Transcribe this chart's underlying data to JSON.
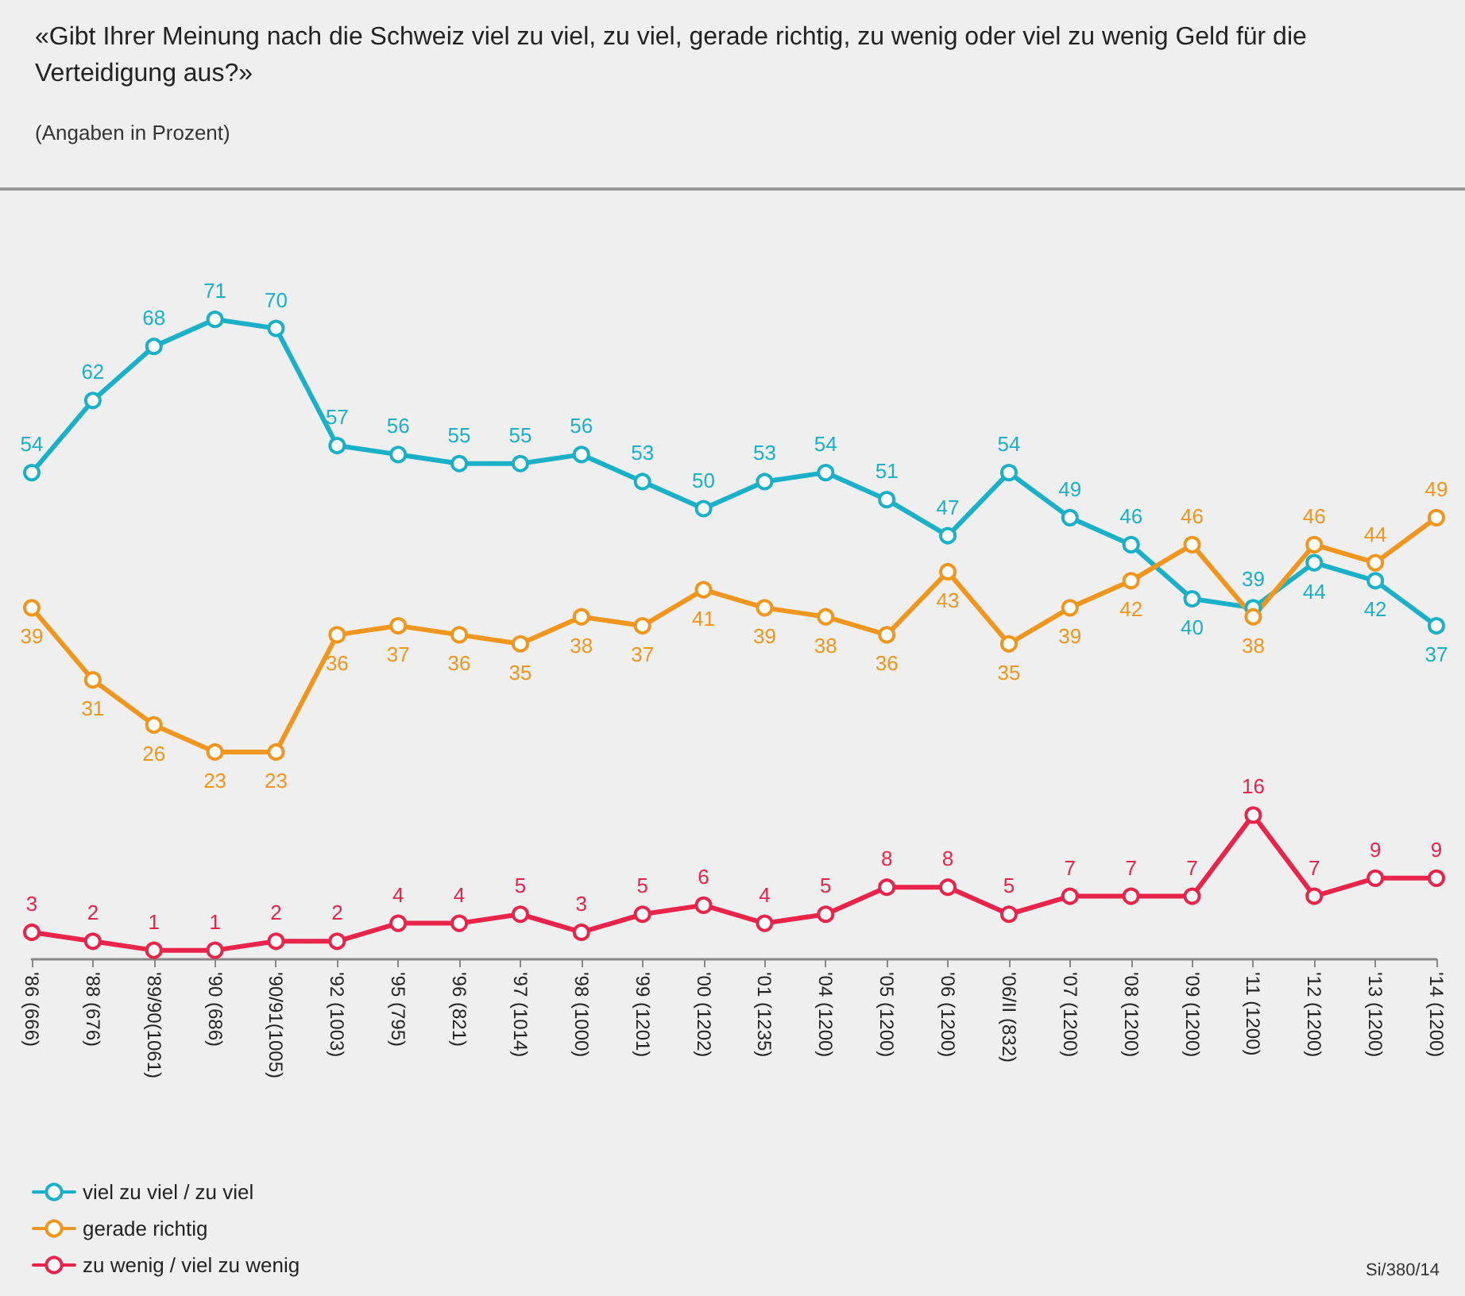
{
  "chart_data": {
    "type": "line",
    "title": "«Gibt Ihrer Meinung nach die Schweiz viel zu viel, zu viel, gerade richtig, zu wenig oder viel zu wenig Geld für die Verteidigung aus?»",
    "subtitle": "(Angaben in Prozent)",
    "annotations": [
      "Si/380/14"
    ],
    "categories": [
      "'86 (666)",
      "'88 (676)",
      "'89/90(1061)",
      "'90 (686)",
      "'90/91(1005)",
      "'92 (1003)",
      "'95 (795)",
      "'96 (821)",
      "'97 (1014)",
      "'98 (1000)",
      "'99 (1201)",
      "'00 (1202)",
      "'01 (1235)",
      "'04 (1200)",
      "'05 (1200)",
      "'06 (1200)",
      "'06/II (832)",
      "'07 (1200)",
      "'08 (1200)",
      "'09 (1200)",
      "'11 (1200)",
      "'12 (1200)",
      "'13 (1200)",
      "'14 (1200)"
    ],
    "series": [
      {
        "name": "viel zu viel / zu viel",
        "color": "#1ab0c8",
        "values": [
          54,
          62,
          68,
          71,
          70,
          57,
          56,
          55,
          55,
          56,
          53,
          50,
          53,
          54,
          51,
          47,
          54,
          49,
          46,
          40,
          39,
          44,
          42,
          37
        ]
      },
      {
        "name": "gerade richtig",
        "color": "#f0961e",
        "values": [
          39,
          31,
          26,
          23,
          23,
          36,
          37,
          36,
          35,
          38,
          37,
          41,
          39,
          38,
          36,
          43,
          35,
          39,
          42,
          46,
          38,
          46,
          44,
          49
        ]
      },
      {
        "name": "zu wenig / viel zu wenig",
        "color": "#e8244a",
        "values": [
          3,
          2,
          1,
          1,
          2,
          2,
          4,
          4,
          5,
          3,
          5,
          6,
          4,
          5,
          8,
          8,
          5,
          7,
          7,
          7,
          16,
          7,
          9,
          9
        ]
      }
    ],
    "data_labels": true,
    "marker": "circle",
    "line_style": "solid",
    "grid": false,
    "legend": "bottom left"
  }
}
